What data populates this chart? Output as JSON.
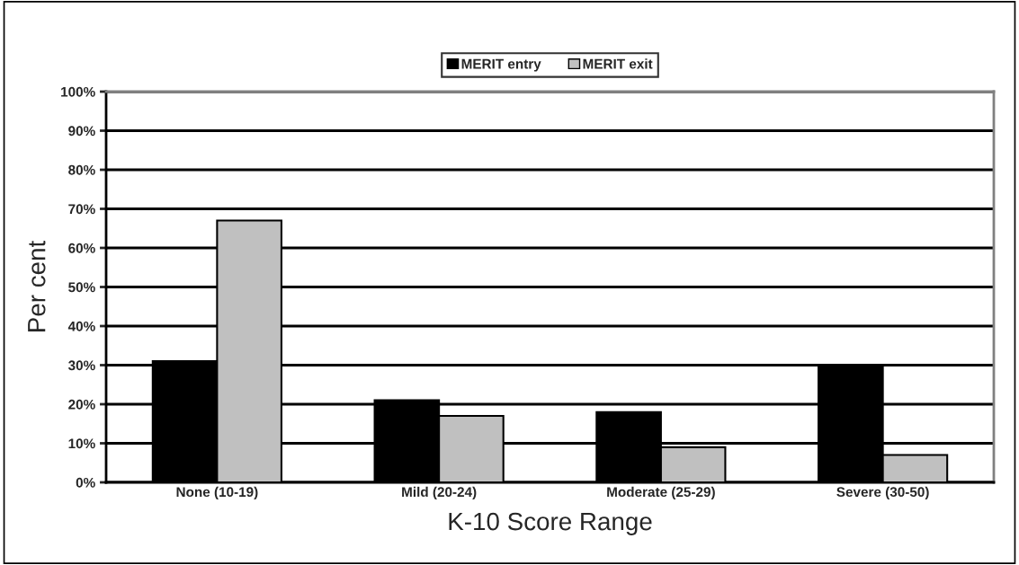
{
  "chart_data": {
    "type": "bar",
    "xlabel": "K-10 Score Range",
    "ylabel": "Per cent",
    "categories": [
      "None (10-19)",
      "Mild (20-24)",
      "Moderate (25-29)",
      "Severe (30-50)"
    ],
    "series": [
      {
        "name": "MERIT entry",
        "color": "#000000",
        "values": [
          31,
          21,
          18,
          30
        ]
      },
      {
        "name": "MERIT exit",
        "color": "#c0c0c0",
        "values": [
          67,
          17,
          9,
          7
        ]
      }
    ],
    "ylim": [
      0,
      100
    ],
    "yticks": [
      {
        "value": 0,
        "label": "0%"
      },
      {
        "value": 10,
        "label": "10%"
      },
      {
        "value": 20,
        "label": "20%"
      },
      {
        "value": 30,
        "label": "30%"
      },
      {
        "value": 40,
        "label": "40%"
      },
      {
        "value": 50,
        "label": "50%"
      },
      {
        "value": 60,
        "label": "60%"
      },
      {
        "value": 70,
        "label": "70%"
      },
      {
        "value": 80,
        "label": "80%"
      },
      {
        "value": 90,
        "label": "90%"
      },
      {
        "value": 100,
        "label": "100%"
      }
    ],
    "grid": "y",
    "legend": "top"
  }
}
